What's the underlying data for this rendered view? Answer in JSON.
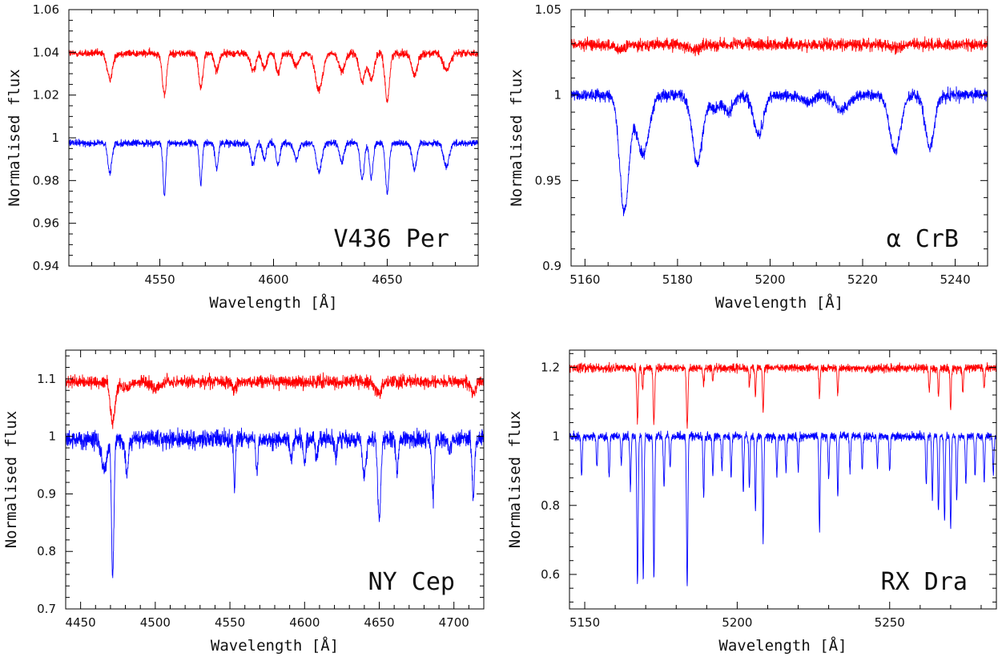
{
  "chart_data": [
    {
      "type": "line",
      "annotation": "V436 Per",
      "xlabel": "Wavelength [Å]",
      "ylabel": "Normalised flux",
      "xlim": [
        4510,
        4690
      ],
      "ylim": [
        0.94,
        1.06
      ],
      "xticks": [
        4550,
        4600,
        4650
      ],
      "yticks": [
        0.94,
        0.96,
        0.98,
        1,
        1.02,
        1.04,
        1.06
      ],
      "ytick_labels": [
        "0.94",
        "0.96",
        "0.98",
        "1",
        "1.02",
        "1.04",
        "1.06"
      ],
      "series": [
        {
          "color": "#ff0000",
          "baseline": 1.0395,
          "noise": 0.0009,
          "lines": [
            [
              4528,
              0.012,
              1.2
            ],
            [
              4552,
              0.02,
              0.9
            ],
            [
              4568,
              0.016,
              0.9
            ],
            [
              4575,
              0.008,
              1.0
            ],
            [
              4591,
              0.008,
              1.2
            ],
            [
              4596,
              0.007,
              1.0
            ],
            [
              4602,
              0.009,
              1.0
            ],
            [
              4610,
              0.006,
              1.2
            ],
            [
              4620,
              0.017,
              1.6
            ],
            [
              4630,
              0.008,
              1.4
            ],
            [
              4639,
              0.013,
              1.3
            ],
            [
              4643,
              0.012,
              1.2
            ],
            [
              4650,
              0.022,
              1.0
            ],
            [
              4662,
              0.01,
              1.3
            ],
            [
              4676,
              0.008,
              1.5
            ]
          ]
        },
        {
          "color": "#0000ff",
          "baseline": 0.9975,
          "noise": 0.0008,
          "lines": [
            [
              4528,
              0.014,
              0.9
            ],
            [
              4552,
              0.025,
              0.6
            ],
            [
              4568,
              0.019,
              0.6
            ],
            [
              4575,
              0.012,
              0.7
            ],
            [
              4591,
              0.01,
              0.9
            ],
            [
              4596,
              0.008,
              0.8
            ],
            [
              4602,
              0.01,
              0.8
            ],
            [
              4610,
              0.008,
              0.9
            ],
            [
              4620,
              0.013,
              1.2
            ],
            [
              4630,
              0.009,
              1.0
            ],
            [
              4639,
              0.017,
              0.9
            ],
            [
              4643,
              0.016,
              0.8
            ],
            [
              4650,
              0.023,
              0.8
            ],
            [
              4662,
              0.012,
              1.0
            ],
            [
              4676,
              0.011,
              1.2
            ]
          ]
        }
      ]
    },
    {
      "type": "line",
      "annotation": "α CrB",
      "xlabel": "Wavelength [Å]",
      "ylabel": "Normalised flux",
      "xlim": [
        5157,
        5247
      ],
      "ylim": [
        0.9,
        1.05
      ],
      "xticks": [
        5160,
        5180,
        5200,
        5220,
        5240
      ],
      "yticks": [
        0.9,
        0.95,
        1,
        1.05
      ],
      "ytick_labels": [
        "0.9",
        "0.95",
        "1",
        "1.05"
      ],
      "series": [
        {
          "color": "#ff0000",
          "baseline": 1.0295,
          "noise": 0.0017,
          "lines": [
            [
              5167.5,
              0.003,
              1.2
            ],
            [
              5183.6,
              0.003,
              1.2
            ],
            [
              5227,
              0.002,
              1.2
            ]
          ]
        },
        {
          "color": "#0000ff",
          "baseline": 1.0,
          "noise": 0.0017,
          "lines": [
            [
              5168.5,
              0.068,
              1.0
            ],
            [
              5172.5,
              0.035,
              1.3
            ],
            [
              5184.3,
              0.04,
              1.1
            ],
            [
              5188,
              0.008,
              1.0
            ],
            [
              5191,
              0.01,
              1.0
            ],
            [
              5197.5,
              0.023,
              1.1
            ],
            [
              5215.5,
              0.009,
              1.5
            ],
            [
              5208,
              0.005,
              1.2
            ],
            [
              5227,
              0.033,
              1.2
            ],
            [
              5234.5,
              0.03,
              1.0
            ]
          ]
        }
      ]
    },
    {
      "type": "line",
      "annotation": "NY Cep",
      "xlabel": "Wavelength [Å]",
      "ylabel": "Normalised flux",
      "xlim": [
        4440,
        4720
      ],
      "ylim": [
        0.7,
        1.15
      ],
      "xticks": [
        4450,
        4500,
        4550,
        4600,
        4650,
        4700
      ],
      "yticks": [
        0.7,
        0.8,
        0.9,
        1,
        1.1
      ],
      "ytick_labels": [
        "0.7",
        "0.8",
        "0.9",
        "1",
        "1.1"
      ],
      "series": [
        {
          "color": "#ff0000",
          "baseline": 1.095,
          "noise": 0.0055,
          "lines": [
            [
              4471.5,
              0.072,
              1.6
            ],
            [
              4480,
              0.01,
              3.0
            ],
            [
              4500,
              0.012,
              3.0
            ],
            [
              4553,
              0.015,
              1.2
            ],
            [
              4649,
              0.022,
              1.8
            ],
            [
              4713,
              0.018,
              1.5
            ]
          ]
        },
        {
          "color": "#0000ff",
          "baseline": 0.995,
          "noise": 0.0075,
          "lines": [
            [
              4471.5,
              0.24,
              0.8
            ],
            [
              4466,
              0.05,
              2.0
            ],
            [
              4481,
              0.06,
              1.0
            ],
            [
              4553,
              0.08,
              0.6
            ],
            [
              4568,
              0.06,
              0.7
            ],
            [
              4591,
              0.04,
              0.8
            ],
            [
              4600,
              0.04,
              0.8
            ],
            [
              4608,
              0.03,
              0.8
            ],
            [
              4621,
              0.03,
              0.8
            ],
            [
              4640,
              0.06,
              1.2
            ],
            [
              4650,
              0.14,
              1.0
            ],
            [
              4662,
              0.06,
              0.8
            ],
            [
              4686,
              0.1,
              0.8
            ],
            [
              4713,
              0.1,
              0.8
            ],
            [
              4697,
              0.02,
              1.0
            ]
          ]
        }
      ]
    },
    {
      "type": "line",
      "annotation": "RX Dra",
      "xlabel": "Wavelength [Å]",
      "ylabel": "Normalised flux",
      "xlim": [
        5145,
        5285
      ],
      "ylim": [
        0.5,
        1.25
      ],
      "xticks": [
        5150,
        5200,
        5250
      ],
      "yticks": [
        0.6,
        0.8,
        1,
        1.2
      ],
      "ytick_labels": [
        "0.6",
        "0.8",
        "1",
        "1.2"
      ],
      "series": [
        {
          "color": "#ff0000",
          "baseline": 1.198,
          "noise": 0.006,
          "lines": [
            [
              5167.3,
              0.15,
              0.25
            ],
            [
              5172.7,
              0.16,
              0.25
            ],
            [
              5183.6,
              0.17,
              0.25
            ],
            [
              5169,
              0.06,
              0.2
            ],
            [
              5189,
              0.05,
              0.2
            ],
            [
              5192,
              0.04,
              0.2
            ],
            [
              5204,
              0.05,
              0.2
            ],
            [
              5206,
              0.08,
              0.2
            ],
            [
              5208.5,
              0.13,
              0.2
            ],
            [
              5227,
              0.08,
              0.2
            ],
            [
              5233,
              0.08,
              0.2
            ],
            [
              5263,
              0.07,
              0.2
            ],
            [
              5266,
              0.08,
              0.2
            ],
            [
              5270,
              0.12,
              0.2
            ],
            [
              5274,
              0.07,
              0.2
            ],
            [
              5281,
              0.06,
              0.2
            ]
          ]
        },
        {
          "color": "#0000ff",
          "baseline": 1.0,
          "noise": 0.006,
          "lines": [
            [
              5167.3,
              0.43,
              0.22
            ],
            [
              5169.2,
              0.41,
              0.22
            ],
            [
              5172.7,
              0.41,
              0.22
            ],
            [
              5183.6,
              0.44,
              0.22
            ],
            [
              5149,
              0.12,
              0.2
            ],
            [
              5154,
              0.09,
              0.2
            ],
            [
              5158,
              0.12,
              0.2
            ],
            [
              5162,
              0.08,
              0.2
            ],
            [
              5165,
              0.15,
              0.2
            ],
            [
              5176,
              0.15,
              0.2
            ],
            [
              5178,
              0.09,
              0.2
            ],
            [
              5189,
              0.18,
              0.2
            ],
            [
              5192,
              0.12,
              0.2
            ],
            [
              5195,
              0.1,
              0.2
            ],
            [
              5198,
              0.12,
              0.2
            ],
            [
              5202,
              0.16,
              0.2
            ],
            [
              5204,
              0.15,
              0.2
            ],
            [
              5206,
              0.22,
              0.2
            ],
            [
              5208.5,
              0.31,
              0.2
            ],
            [
              5213,
              0.11,
              0.2
            ],
            [
              5216,
              0.1,
              0.2
            ],
            [
              5220,
              0.1,
              0.2
            ],
            [
              5227,
              0.27,
              0.2
            ],
            [
              5230,
              0.12,
              0.2
            ],
            [
              5233,
              0.17,
              0.2
            ],
            [
              5237,
              0.1,
              0.2
            ],
            [
              5241,
              0.1,
              0.2
            ],
            [
              5246,
              0.09,
              0.2
            ],
            [
              5250,
              0.1,
              0.2
            ],
            [
              5262,
              0.14,
              0.2
            ],
            [
              5264,
              0.18,
              0.2
            ],
            [
              5266,
              0.22,
              0.2
            ],
            [
              5268,
              0.24,
              0.2
            ],
            [
              5270,
              0.27,
              0.2
            ],
            [
              5272,
              0.19,
              0.2
            ],
            [
              5275,
              0.14,
              0.2
            ],
            [
              5278,
              0.11,
              0.2
            ],
            [
              5281,
              0.13,
              0.2
            ],
            [
              5284,
              0.11,
              0.2
            ]
          ]
        }
      ]
    }
  ]
}
